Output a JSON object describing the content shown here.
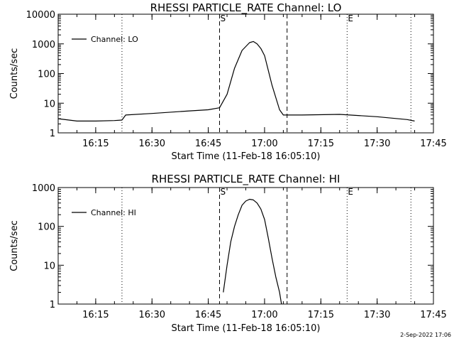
{
  "footer": {
    "timestamp": "2-Sep-2022 17:06"
  },
  "chart_data": [
    {
      "type": "line",
      "title": "RHESSI PARTICLE_RATE Channel: LO",
      "xlabel": "Start Time (11-Feb-18 16:05:10)",
      "ylabel": "Counts/sec",
      "yscale": "log",
      "xlim": [
        "16:05",
        "17:45"
      ],
      "ylim": [
        1,
        10000
      ],
      "x_ticks": [
        "16:15",
        "16:30",
        "16:45",
        "17:00",
        "17:15",
        "17:30",
        "17:45"
      ],
      "y_ticks": [
        "1",
        "10",
        "100",
        "1000",
        "10000"
      ],
      "legend": {
        "position": "top-left",
        "entries": [
          "Channel: LO"
        ]
      },
      "series": [
        {
          "name": "Channel: LO",
          "color": "#000000",
          "x": [
            "16:05",
            "16:10",
            "16:15",
            "16:20",
            "16:22",
            "16:23",
            "16:30",
            "16:40",
            "16:45",
            "16:48",
            "16:50",
            "16:52",
            "16:54",
            "16:56",
            "16:57",
            "16:58",
            "16:59",
            "17:00",
            "17:02",
            "17:04",
            "17:05",
            "17:06",
            "17:10",
            "17:20",
            "17:30",
            "17:38",
            "17:40"
          ],
          "y": [
            3,
            2.5,
            2.5,
            2.6,
            2.7,
            4,
            4.5,
            5.5,
            6,
            7,
            20,
            150,
            600,
            1100,
            1200,
            1000,
            700,
            400,
            40,
            6,
            4,
            4,
            4,
            4.2,
            3.5,
            2.8,
            2.5
          ]
        }
      ],
      "vertical_markers": [
        {
          "time": "16:22",
          "style": "dotted",
          "label": ""
        },
        {
          "time": "16:48",
          "style": "dashed",
          "label": "S"
        },
        {
          "time": "17:06",
          "style": "dashed",
          "label": ""
        },
        {
          "time": "17:22",
          "style": "dotted",
          "label": "E"
        },
        {
          "time": "17:39",
          "style": "dotted",
          "label": ""
        }
      ]
    },
    {
      "type": "line",
      "title": "RHESSI PARTICLE_RATE Channel: HI",
      "xlabel": "Start Time (11-Feb-18 16:05:10)",
      "ylabel": "Counts/sec",
      "yscale": "log",
      "xlim": [
        "16:05",
        "17:45"
      ],
      "ylim": [
        1,
        1000
      ],
      "x_ticks": [
        "16:15",
        "16:30",
        "16:45",
        "17:00",
        "17:15",
        "17:30",
        "17:45"
      ],
      "y_ticks": [
        "1",
        "10",
        "100",
        "1000"
      ],
      "legend": {
        "position": "top-left",
        "entries": [
          "Channel: HI"
        ]
      },
      "series": [
        {
          "name": "Channel: HI",
          "color": "#000000",
          "x": [
            "16:49",
            "16:50",
            "16:51",
            "16:52",
            "16:53",
            "16:54",
            "16:55",
            "16:56",
            "16:57",
            "16:58",
            "16:59",
            "17:00",
            "17:01",
            "17:02",
            "17:03",
            "17:04",
            "17:04.5"
          ],
          "y": [
            2,
            10,
            40,
            100,
            200,
            350,
            450,
            500,
            480,
            400,
            280,
            150,
            50,
            15,
            5,
            2,
            1
          ]
        }
      ],
      "vertical_markers": [
        {
          "time": "16:22",
          "style": "dotted",
          "label": ""
        },
        {
          "time": "16:48",
          "style": "dashed",
          "label": "S"
        },
        {
          "time": "17:06",
          "style": "dashed",
          "label": ""
        },
        {
          "time": "17:22",
          "style": "dotted",
          "label": "E"
        },
        {
          "time": "17:39",
          "style": "dotted",
          "label": ""
        }
      ]
    }
  ]
}
